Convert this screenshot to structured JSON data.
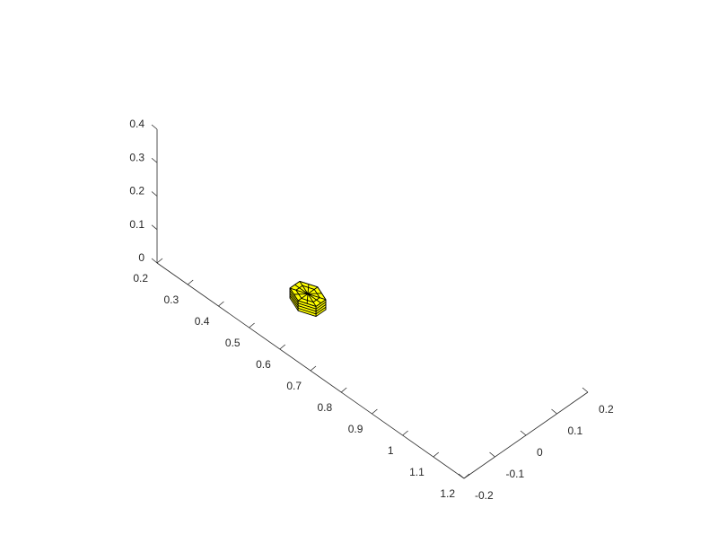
{
  "chart_data": {
    "type": "surface3d",
    "title": "",
    "xlabel": "",
    "ylabel": "",
    "zlabel": "",
    "xlim": [
      0.2,
      1.2
    ],
    "ylim": [
      -0.2,
      0.2
    ],
    "zlim": [
      0,
      0.4
    ],
    "x_ticks": [
      "0.2",
      "0.3",
      "0.4",
      "0.5",
      "0.6",
      "0.7",
      "0.8",
      "0.9",
      "1",
      "1.1",
      "1.2"
    ],
    "y_ticks": [
      "-0.2",
      "-0.1",
      "0",
      "0.1",
      "0.2"
    ],
    "z_ticks": [
      "0",
      "0.1",
      "0.2",
      "0.3",
      "0.4"
    ],
    "grid": false,
    "object": {
      "shape": "hexagonal-prism",
      "center_x": 0.54,
      "center_y": -0.05,
      "z_bottom": 0,
      "z_top": 0.03,
      "radius": 0.035,
      "sides": 6,
      "face_color": "#ffff00",
      "edge_color": "#000000"
    }
  }
}
